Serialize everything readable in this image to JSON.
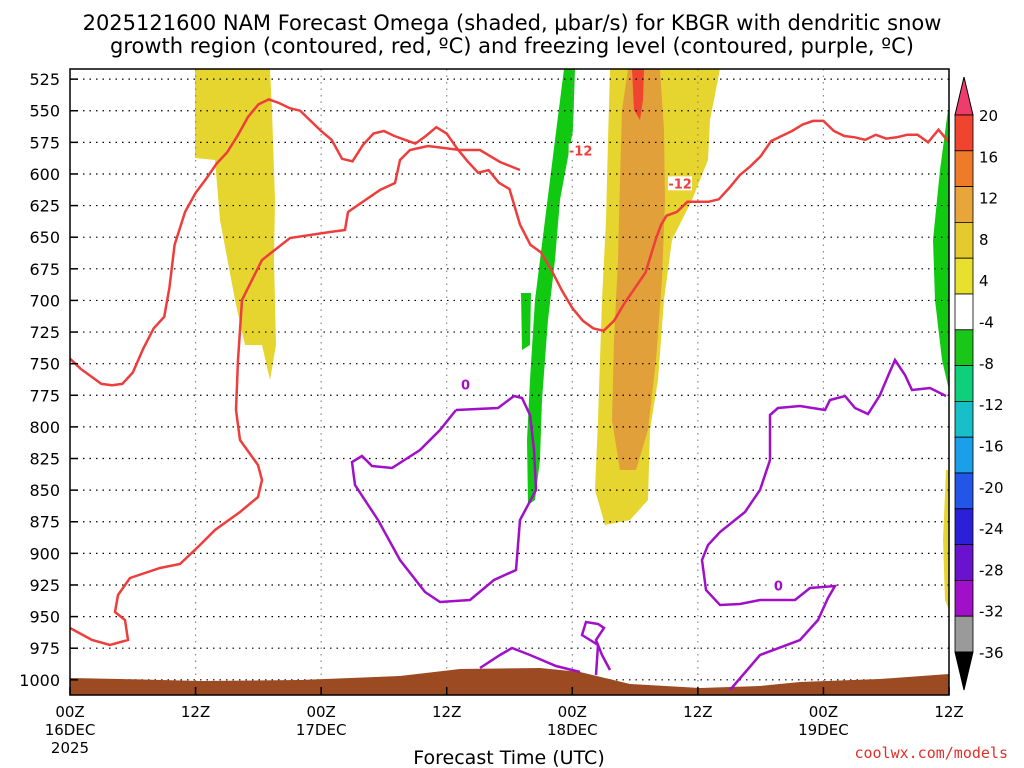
{
  "chart_data": {
    "type": "time-height contour",
    "title": "2025121600 NAM Forecast Omega (shaded, μbar/s) for KBGR with dendritic snow",
    "title_line2": "growth region (contoured, red, ºC) and freezing level (contoured, purple, ºC)",
    "xlabel": "Forecast Time (UTC)",
    "x_ticks": [
      {
        "hour": 0,
        "label": "00Z",
        "date": "16DEC",
        "year": "2025"
      },
      {
        "hour": 12,
        "label": "12Z",
        "date": "",
        "year": ""
      },
      {
        "hour": 24,
        "label": "00Z",
        "date": "17DEC",
        "year": ""
      },
      {
        "hour": 36,
        "label": "12Z",
        "date": "",
        "year": ""
      },
      {
        "hour": 48,
        "label": "00Z",
        "date": "18DEC",
        "year": ""
      },
      {
        "hour": 60,
        "label": "12Z",
        "date": "",
        "year": ""
      },
      {
        "hour": 72,
        "label": "00Z",
        "date": "19DEC",
        "year": ""
      },
      {
        "hour": 84,
        "label": "12Z",
        "date": "",
        "year": ""
      }
    ],
    "x_range_hours": [
      0,
      84
    ],
    "y_ticks": [
      525,
      550,
      575,
      600,
      625,
      650,
      675,
      700,
      725,
      750,
      775,
      800,
      825,
      850,
      875,
      900,
      925,
      950,
      975,
      1000
    ],
    "ylim_hpa": [
      1012,
      517
    ],
    "grid": true,
    "colorbar": {
      "labels": [
        "20",
        "16",
        "12",
        "8",
        "4",
        "-4",
        "-8",
        "-12",
        "-16",
        "-20",
        "-24",
        "-28",
        "-32",
        "-36"
      ],
      "colors": [
        "#ee3d6d",
        "#f0442e",
        "#ef7a2a",
        "#e8a53a",
        "#e6c92e",
        "#e8e02f",
        "#ffffff",
        "#1ac61a",
        "#0fd07a",
        "#18bfc9",
        "#1b9fe8",
        "#2255e8",
        "#2b20d8",
        "#6a12cc",
        "#a010c8",
        "#9a9a9a",
        "#000000"
      ]
    },
    "contour_labels": [
      {
        "text": "-12",
        "hour": 48.8,
        "hpa": 583,
        "color": "#ee3d3d"
      },
      {
        "text": "-12",
        "hour": 58.3,
        "hpa": 609,
        "color": "#ee3d3d"
      },
      {
        "text": "0",
        "hour": 37.8,
        "hpa": 768,
        "color": "#a010c8"
      },
      {
        "text": "0",
        "hour": 67.7,
        "hpa": 927,
        "color": "#a010c8"
      }
    ],
    "dgz_contour_hpa_by_hour": [
      [
        0,
        746
      ],
      [
        1,
        754
      ],
      [
        3,
        766
      ],
      [
        4,
        767
      ],
      [
        5,
        766
      ],
      [
        6,
        757
      ],
      [
        7,
        738
      ],
      [
        8,
        722
      ],
      [
        9,
        713
      ],
      [
        9.5,
        690
      ],
      [
        10,
        656
      ],
      [
        11,
        630
      ],
      [
        12,
        615
      ],
      [
        13,
        604
      ],
      [
        14,
        592
      ],
      [
        15,
        583
      ],
      [
        16,
        570
      ],
      [
        17,
        555
      ],
      [
        18,
        545
      ],
      [
        19,
        541
      ],
      [
        20,
        544
      ],
      [
        21,
        548
      ],
      [
        22,
        550
      ],
      [
        24,
        566
      ],
      [
        25,
        573
      ],
      [
        26,
        588
      ],
      [
        27,
        590
      ],
      [
        28,
        577
      ],
      [
        29,
        568
      ],
      [
        30,
        566
      ],
      [
        31,
        570
      ],
      [
        32,
        573
      ],
      [
        33,
        576
      ],
      [
        34,
        570
      ],
      [
        35,
        563
      ],
      [
        36,
        568
      ],
      [
        37,
        580
      ],
      [
        38,
        590
      ],
      [
        39,
        599
      ],
      [
        40,
        597
      ],
      [
        41,
        607
      ],
      [
        42,
        612
      ],
      [
        43,
        640
      ],
      [
        44,
        656
      ],
      [
        45,
        662
      ],
      [
        46,
        676
      ],
      [
        47,
        692
      ],
      [
        48,
        706
      ],
      [
        49,
        716
      ],
      [
        50,
        722
      ],
      [
        51,
        724
      ],
      [
        52,
        716
      ],
      [
        53,
        702
      ],
      [
        54,
        690
      ],
      [
        55,
        678
      ],
      [
        56,
        651
      ],
      [
        56.5,
        640
      ],
      [
        57,
        633
      ],
      [
        58,
        630
      ],
      [
        59,
        622
      ],
      [
        60,
        622
      ],
      [
        61,
        622
      ],
      [
        62,
        620
      ],
      [
        63,
        611
      ],
      [
        64,
        601
      ],
      [
        65,
        594
      ],
      [
        66,
        586
      ],
      [
        67,
        574
      ],
      [
        68,
        570
      ],
      [
        69,
        566
      ],
      [
        70,
        561
      ],
      [
        71,
        558
      ],
      [
        72,
        558
      ],
      [
        73,
        566
      ],
      [
        74,
        570
      ],
      [
        75,
        571
      ],
      [
        76,
        573
      ],
      [
        77,
        569
      ],
      [
        78,
        572
      ],
      [
        79,
        571
      ],
      [
        80,
        569
      ],
      [
        81,
        569
      ],
      [
        82,
        575
      ],
      [
        83,
        565
      ],
      [
        84,
        575
      ]
    ]
  }
}
